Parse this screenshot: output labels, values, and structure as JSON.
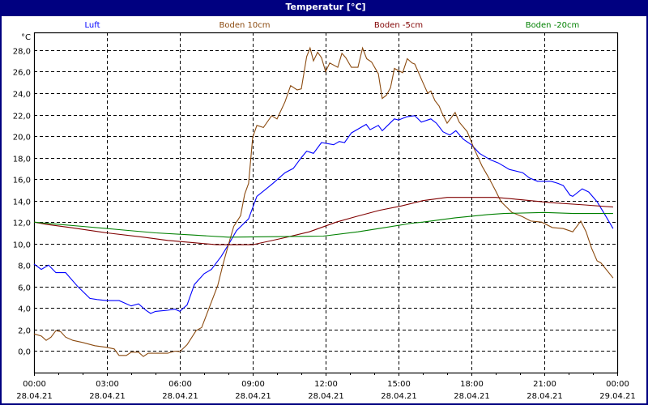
{
  "window": {
    "title": "Temperatur [°C]"
  },
  "chart_data": {
    "type": "line",
    "title": "Temperatur [°C]",
    "ylabel": "°C",
    "ylim": [
      -2,
      29.65
    ],
    "xlim_hours": [
      0,
      24
    ],
    "grid": true,
    "legend_placement": "top",
    "y_ticks": [
      {
        "value": 0,
        "label": "0,0"
      },
      {
        "value": 2,
        "label": "2,0"
      },
      {
        "value": 4,
        "label": "4,0"
      },
      {
        "value": 6,
        "label": "6,0"
      },
      {
        "value": 8,
        "label": "8,0"
      },
      {
        "value": 10,
        "label": "10,0"
      },
      {
        "value": 12,
        "label": "12,0"
      },
      {
        "value": 14,
        "label": "14,0"
      },
      {
        "value": 16,
        "label": "16,0"
      },
      {
        "value": 18,
        "label": "18,0"
      },
      {
        "value": 20,
        "label": "20,0"
      },
      {
        "value": 22,
        "label": "22,0"
      },
      {
        "value": 24,
        "label": "24,0"
      },
      {
        "value": 26,
        "label": "26,0"
      },
      {
        "value": 28,
        "label": "28,0"
      }
    ],
    "x_ticks": [
      {
        "hour": 0,
        "time": "00:00",
        "date": "28.04.21"
      },
      {
        "hour": 3,
        "time": "03:00",
        "date": "28.04.21"
      },
      {
        "hour": 6,
        "time": "06:00",
        "date": "28.04.21"
      },
      {
        "hour": 9,
        "time": "09:00",
        "date": "28.04.21"
      },
      {
        "hour": 12,
        "time": "12:00",
        "date": "28.04.21"
      },
      {
        "hour": 15,
        "time": "15:00",
        "date": "28.04.21"
      },
      {
        "hour": 18,
        "time": "18:00",
        "date": "28.04.21"
      },
      {
        "hour": 21,
        "time": "21:00",
        "date": "28.04.21"
      },
      {
        "hour": 24,
        "time": "00:00",
        "date": "29.04.21"
      }
    ],
    "series": [
      {
        "name": "Luft",
        "color": "#0000ff",
        "points": [
          [
            0,
            8.1
          ],
          [
            0.3,
            7.6
          ],
          [
            0.6,
            8.0
          ],
          [
            0.9,
            7.3
          ],
          [
            1.3,
            7.3
          ],
          [
            1.8,
            6.0
          ],
          [
            2.3,
            4.9
          ],
          [
            2.6,
            4.8
          ],
          [
            3,
            4.7
          ],
          [
            3.5,
            4.7
          ],
          [
            4,
            4.2
          ],
          [
            4.3,
            4.4
          ],
          [
            4.6,
            3.8
          ],
          [
            4.8,
            3.5
          ],
          [
            5,
            3.7
          ],
          [
            5.5,
            3.8
          ],
          [
            5.8,
            3.9
          ],
          [
            6,
            3.7
          ],
          [
            6.3,
            4.3
          ],
          [
            6.6,
            6.2
          ],
          [
            7,
            7.2
          ],
          [
            7.3,
            7.6
          ],
          [
            7.7,
            8.8
          ],
          [
            8,
            9.9
          ],
          [
            8.33,
            11.2
          ],
          [
            8.83,
            12.3
          ],
          [
            9.17,
            14.4
          ],
          [
            9.56,
            15.1
          ],
          [
            9.83,
            15.6
          ],
          [
            10.33,
            16.6
          ],
          [
            10.67,
            17.0
          ],
          [
            11,
            18.0
          ],
          [
            11.22,
            18.6
          ],
          [
            11.5,
            18.4
          ],
          [
            11.83,
            19.4
          ],
          [
            12.33,
            19.2
          ],
          [
            12.56,
            19.5
          ],
          [
            12.78,
            19.4
          ],
          [
            13.06,
            20.3
          ],
          [
            13.67,
            21.1
          ],
          [
            13.83,
            20.6
          ],
          [
            14.17,
            21.0
          ],
          [
            14.33,
            20.5
          ],
          [
            14.83,
            21.6
          ],
          [
            15,
            21.5
          ],
          [
            15.33,
            21.8
          ],
          [
            15.67,
            21.9
          ],
          [
            15.94,
            21.3
          ],
          [
            16.33,
            21.6
          ],
          [
            16.56,
            21.2
          ],
          [
            16.83,
            20.4
          ],
          [
            17.11,
            20.1
          ],
          [
            17.36,
            20.5
          ],
          [
            17.67,
            19.7
          ],
          [
            18,
            19.2
          ],
          [
            18.33,
            18.4
          ],
          [
            18.78,
            17.8
          ],
          [
            19.11,
            17.5
          ],
          [
            19.56,
            16.9
          ],
          [
            20.11,
            16.6
          ],
          [
            20.39,
            16.1
          ],
          [
            20.72,
            15.8
          ],
          [
            21.28,
            15.8
          ],
          [
            21.56,
            15.6
          ],
          [
            21.78,
            15.4
          ],
          [
            22.06,
            14.5
          ],
          [
            22.17,
            14.4
          ],
          [
            22.56,
            15.1
          ],
          [
            22.83,
            14.8
          ],
          [
            23.17,
            13.9
          ],
          [
            23.44,
            12.9
          ],
          [
            23.83,
            11.4
          ]
        ]
      },
      {
        "name": "Boden 10cm",
        "color": "#8b4a0f",
        "points": [
          [
            0,
            1.6
          ],
          [
            0.3,
            1.4
          ],
          [
            0.5,
            1.0
          ],
          [
            0.7,
            1.3
          ],
          [
            0.9,
            1.9
          ],
          [
            1.1,
            1.8
          ],
          [
            1.3,
            1.3
          ],
          [
            1.6,
            1.0
          ],
          [
            2,
            0.8
          ],
          [
            2.5,
            0.5
          ],
          [
            3,
            0.35
          ],
          [
            3.3,
            0.2
          ],
          [
            3.5,
            -0.4
          ],
          [
            3.8,
            -0.4
          ],
          [
            4,
            -0.1
          ],
          [
            4.3,
            -0.1
          ],
          [
            4.5,
            -0.5
          ],
          [
            4.7,
            -0.2
          ],
          [
            5,
            -0.2
          ],
          [
            5.5,
            -0.2
          ],
          [
            5.8,
            0.0
          ],
          [
            6,
            -0.05
          ],
          [
            6.3,
            0.6
          ],
          [
            6.67,
            1.9
          ],
          [
            6.9,
            2.2
          ],
          [
            7.22,
            4.1
          ],
          [
            7.56,
            6.1
          ],
          [
            7.78,
            8.1
          ],
          [
            8,
            9.9
          ],
          [
            8.22,
            11.6
          ],
          [
            8.5,
            12.6
          ],
          [
            8.67,
            14.6
          ],
          [
            8.83,
            15.6
          ],
          [
            9,
            19.9
          ],
          [
            9.17,
            21.0
          ],
          [
            9.44,
            20.8
          ],
          [
            9.78,
            21.9
          ],
          [
            10,
            21.6
          ],
          [
            10.33,
            23.2
          ],
          [
            10.56,
            24.7
          ],
          [
            10.83,
            24.3
          ],
          [
            11,
            24.4
          ],
          [
            11.22,
            27.4
          ],
          [
            11.36,
            28.2
          ],
          [
            11.5,
            27.0
          ],
          [
            11.67,
            27.8
          ],
          [
            11.83,
            27.3
          ],
          [
            12,
            26.0
          ],
          [
            12.17,
            26.8
          ],
          [
            12.5,
            26.4
          ],
          [
            12.67,
            27.7
          ],
          [
            12.83,
            27.3
          ],
          [
            13.06,
            26.4
          ],
          [
            13.33,
            26.4
          ],
          [
            13.52,
            28.2
          ],
          [
            13.69,
            27.2
          ],
          [
            13.89,
            26.9
          ],
          [
            14.17,
            25.8
          ],
          [
            14.33,
            23.5
          ],
          [
            14.5,
            23.8
          ],
          [
            14.67,
            24.5
          ],
          [
            14.83,
            26.3
          ],
          [
            15.17,
            25.9
          ],
          [
            15.36,
            27.2
          ],
          [
            15.56,
            26.8
          ],
          [
            15.67,
            26.7
          ],
          [
            16,
            25.0
          ],
          [
            16.2,
            24.0
          ],
          [
            16.33,
            24.2
          ],
          [
            16.5,
            23.3
          ],
          [
            16.67,
            22.8
          ],
          [
            16.78,
            22.2
          ],
          [
            17,
            21.2
          ],
          [
            17.33,
            22.2
          ],
          [
            17.5,
            21.3
          ],
          [
            17.83,
            20.4
          ],
          [
            18.1,
            18.9
          ],
          [
            18.44,
            17.2
          ],
          [
            18.72,
            16.1
          ],
          [
            19,
            14.9
          ],
          [
            19.22,
            13.9
          ],
          [
            19.67,
            12.9
          ],
          [
            20.11,
            12.5
          ],
          [
            20.44,
            12.1
          ],
          [
            20.89,
            12.0
          ],
          [
            21.33,
            11.5
          ],
          [
            21.78,
            11.4
          ],
          [
            22.17,
            11.1
          ],
          [
            22.5,
            12.1
          ],
          [
            22.72,
            11.1
          ],
          [
            22.94,
            9.6
          ],
          [
            23.17,
            8.4
          ],
          [
            23.33,
            8.2
          ],
          [
            23.83,
            6.8
          ]
        ]
      },
      {
        "name": "Boden -5cm",
        "color": "#800000",
        "points": [
          [
            0,
            12.0
          ],
          [
            0.5,
            11.8
          ],
          [
            1.5,
            11.5
          ],
          [
            3,
            11.0
          ],
          [
            4.5,
            10.6
          ],
          [
            5.5,
            10.3
          ],
          [
            6.5,
            10.1
          ],
          [
            7.5,
            9.9
          ],
          [
            9,
            9.9
          ],
          [
            10.22,
            10.5
          ],
          [
            11.33,
            11.1
          ],
          [
            12.44,
            12.0
          ],
          [
            13.22,
            12.5
          ],
          [
            14.22,
            13.1
          ],
          [
            15.11,
            13.5
          ],
          [
            16,
            14.0
          ],
          [
            17,
            14.3
          ],
          [
            19,
            14.3
          ],
          [
            20,
            14.1
          ],
          [
            21.33,
            13.8
          ],
          [
            22.67,
            13.6
          ],
          [
            23.83,
            13.4
          ]
        ]
      },
      {
        "name": "Boden -20cm",
        "color": "#008000",
        "points": [
          [
            0,
            12.0
          ],
          [
            1,
            11.8
          ],
          [
            2,
            11.6
          ],
          [
            3.5,
            11.3
          ],
          [
            5,
            11.0
          ],
          [
            6.5,
            10.8
          ],
          [
            8,
            10.6
          ],
          [
            11.9,
            10.7
          ],
          [
            13.33,
            11.1
          ],
          [
            14.44,
            11.5
          ],
          [
            15.56,
            11.9
          ],
          [
            16,
            12.0
          ],
          [
            17.33,
            12.4
          ],
          [
            18.67,
            12.7
          ],
          [
            19.33,
            12.8
          ],
          [
            21,
            12.9
          ],
          [
            22.2,
            12.8
          ],
          [
            23.83,
            12.8
          ]
        ]
      }
    ]
  }
}
